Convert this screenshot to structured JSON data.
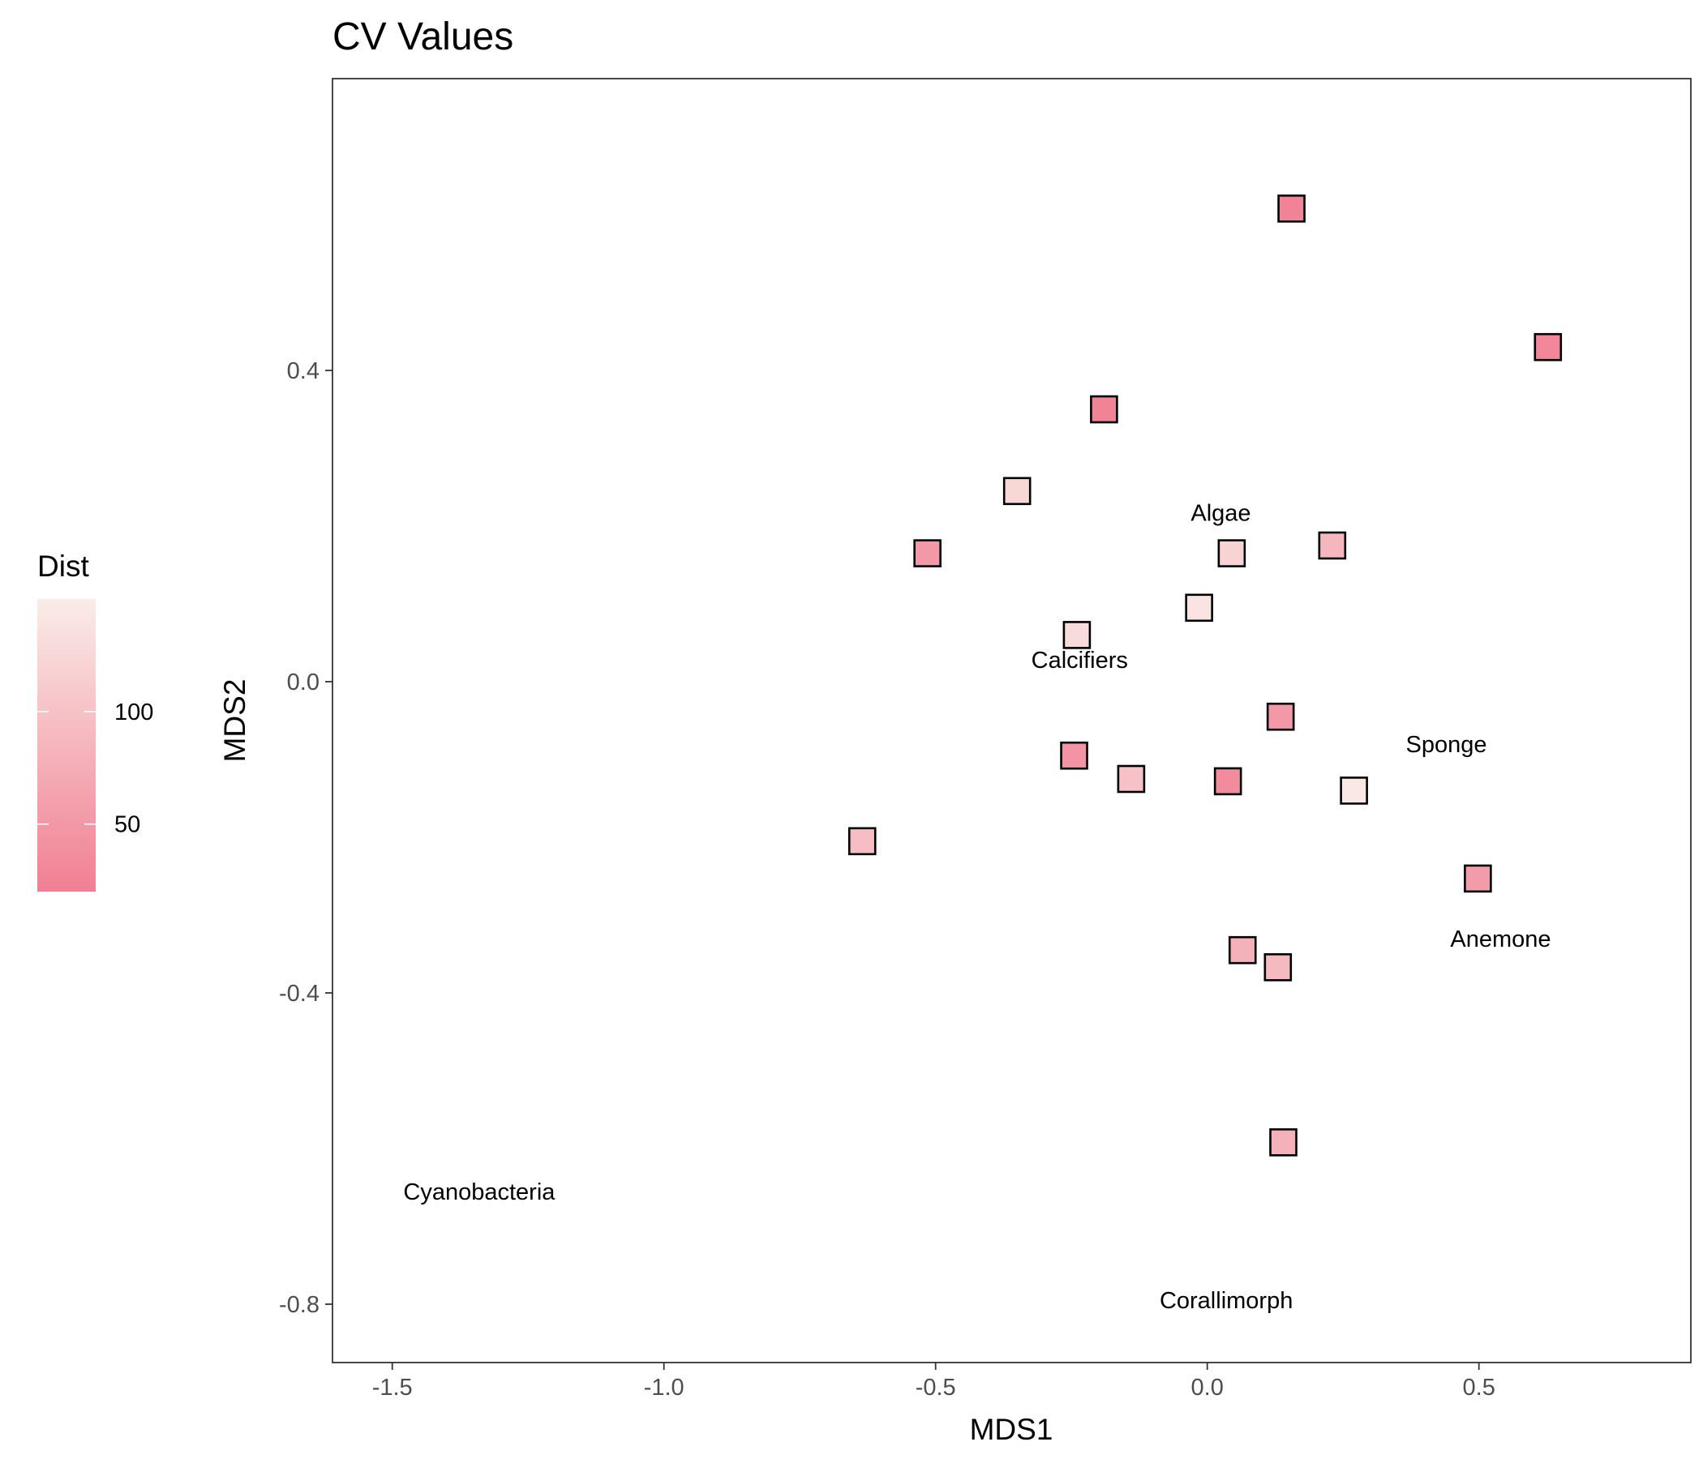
{
  "chart_data": {
    "type": "scatter",
    "title": "CV Values",
    "xlabel": "MDS1",
    "ylabel": "MDS2",
    "xlim": [
      -1.61,
      0.89
    ],
    "ylim": [
      -0.875,
      0.775
    ],
    "xticks": [
      "-1.5",
      "-1.0",
      "-0.5",
      "0.0",
      "0.5"
    ],
    "yticks": [
      "-0.8",
      "-0.4",
      "0.0",
      "0.4"
    ],
    "grid": false,
    "legend": {
      "title": "Dist",
      "placement": "left",
      "scale_min": 20,
      "scale_max": 150,
      "ticks": [
        "50",
        "100"
      ],
      "color_low": "#f07f92",
      "color_high": "#faece8"
    },
    "points": [
      {
        "x": 0.155,
        "y": 0.608,
        "dist": 25
      },
      {
        "x": 0.627,
        "y": 0.43,
        "dist": 30
      },
      {
        "x": -0.19,
        "y": 0.35,
        "dist": 25
      },
      {
        "x": -0.35,
        "y": 0.245,
        "dist": 125
      },
      {
        "x": -0.515,
        "y": 0.165,
        "dist": 50
      },
      {
        "x": 0.045,
        "y": 0.165,
        "dist": 120
      },
      {
        "x": 0.23,
        "y": 0.175,
        "dist": 85
      },
      {
        "x": -0.015,
        "y": 0.095,
        "dist": 140
      },
      {
        "x": -0.24,
        "y": 0.06,
        "dist": 130
      },
      {
        "x": 0.135,
        "y": -0.045,
        "dist": 50
      },
      {
        "x": -0.245,
        "y": -0.095,
        "dist": 45
      },
      {
        "x": -0.14,
        "y": -0.125,
        "dist": 100
      },
      {
        "x": 0.038,
        "y": -0.128,
        "dist": 35
      },
      {
        "x": 0.27,
        "y": -0.14,
        "dist": 145
      },
      {
        "x": -0.635,
        "y": -0.205,
        "dist": 95
      },
      {
        "x": 0.498,
        "y": -0.253,
        "dist": 55
      },
      {
        "x": 0.065,
        "y": -0.345,
        "dist": 80
      },
      {
        "x": 0.13,
        "y": -0.367,
        "dist": 90
      },
      {
        "x": 0.14,
        "y": -0.592,
        "dist": 80
      }
    ],
    "annotations": [
      {
        "text": "Algae",
        "x": 0.025,
        "y": 0.217
      },
      {
        "text": "Calcifiers",
        "x": -0.235,
        "y": 0.028
      },
      {
        "text": "Sponge",
        "x": 0.44,
        "y": -0.08
      },
      {
        "text": "Anemone",
        "x": 0.54,
        "y": -0.33
      },
      {
        "text": "Cyanobacteria",
        "x": -1.34,
        "y": -0.655
      },
      {
        "text": "Corallimorph",
        "x": 0.035,
        "y": -0.795
      }
    ]
  }
}
